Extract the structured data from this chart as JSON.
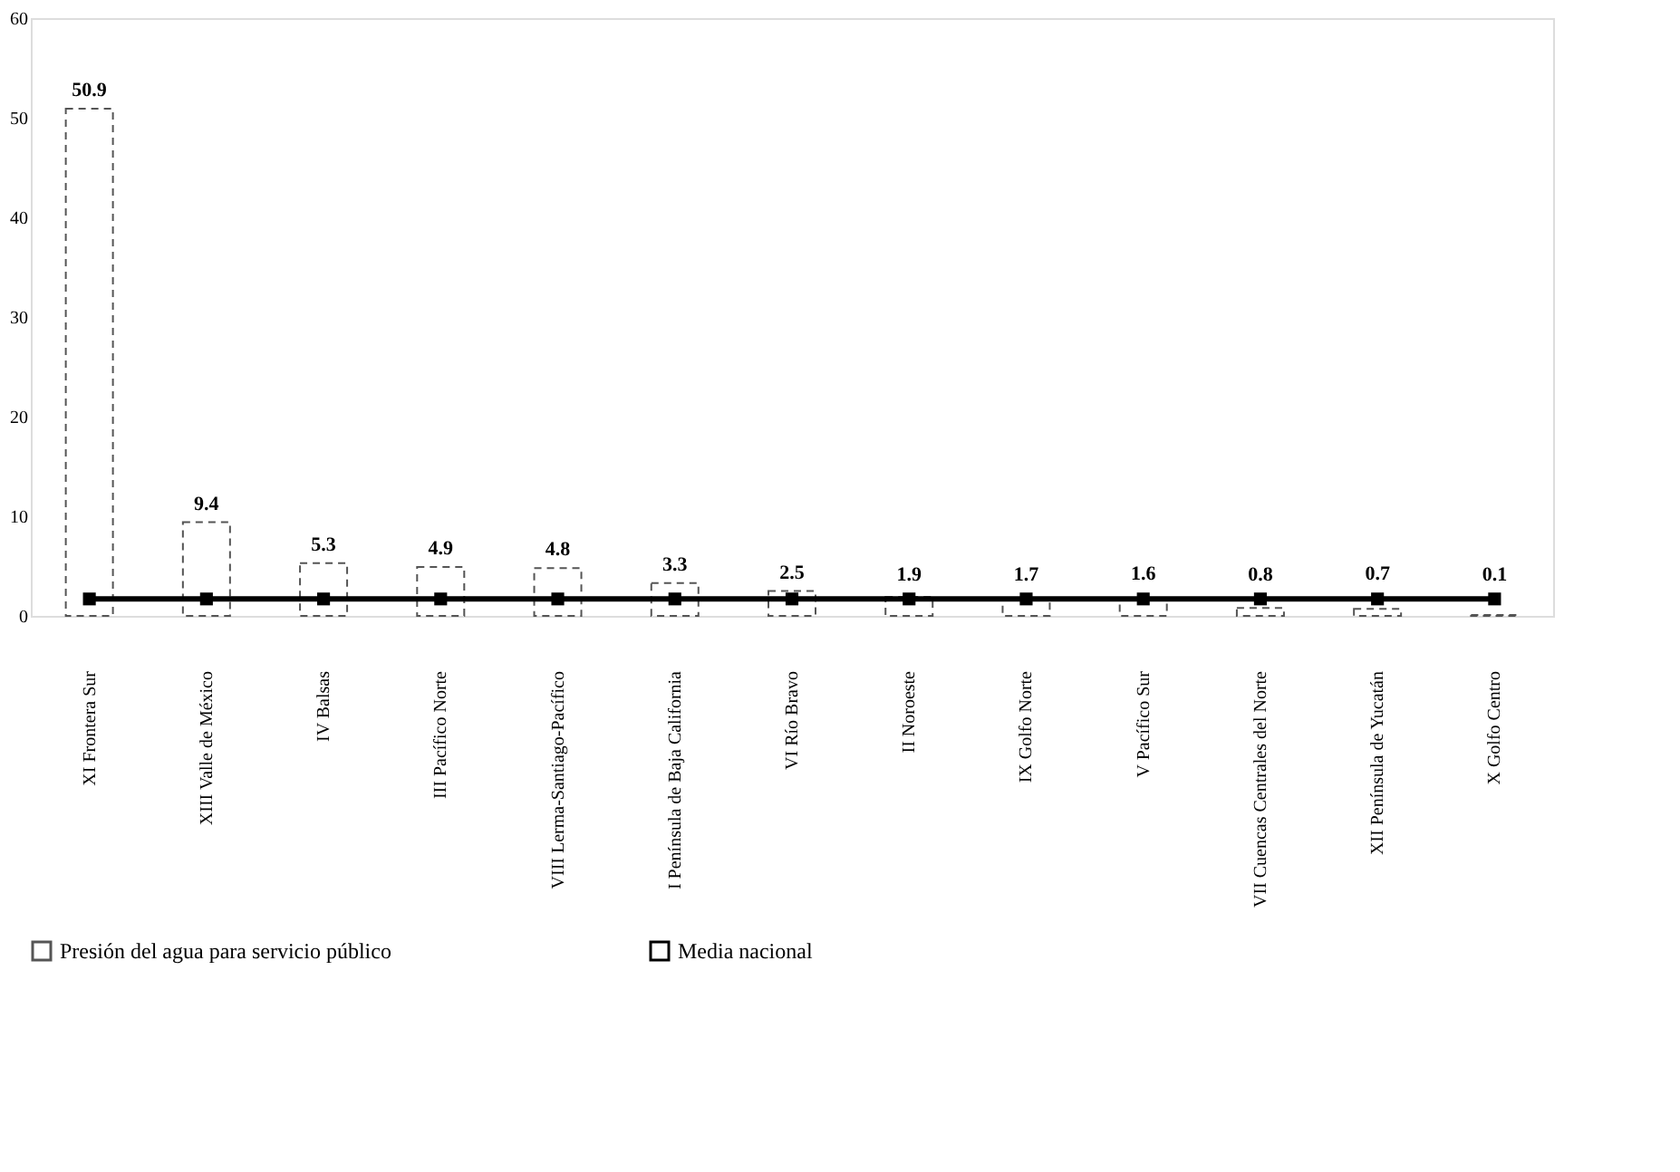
{
  "chart_data": {
    "type": "bar",
    "categories": [
      "XI Frontera Sur",
      "XIII Valle de México",
      "IV Balsas",
      "III Pacífico Norte",
      "VIII Lerma-Santiago-Pacífico",
      "I Península de Baja California",
      "VI Río Bravo",
      "II Noroeste",
      "IX Golfo Norte",
      "V Pacífico Sur",
      "VII Cuencas Centrales del Norte",
      "XII Península de Yucatán",
      "X Golfo Centro"
    ],
    "series": [
      {
        "name": "Presión del agua para servicio público",
        "color": "#555555",
        "line_style": "dashed",
        "values": [
          50.9,
          9.4,
          5.3,
          4.9,
          4.8,
          3.3,
          2.5,
          1.9,
          1.7,
          1.6,
          0.8,
          0.7,
          0.1
        ],
        "value_labels": [
          "50.9",
          "9.4",
          "5.3",
          "4.9",
          "4.8",
          "3.3",
          "2.5",
          "1.9",
          "1.7",
          "1.6",
          "0.8",
          "0.7",
          "0.1"
        ]
      },
      {
        "name": "Media nacional",
        "type": "line",
        "color": "#000000",
        "marker": "square",
        "values": [
          1.7,
          1.7,
          1.7,
          1.7,
          1.7,
          1.7,
          1.7,
          1.7,
          1.7,
          1.7,
          1.7,
          1.7,
          1.7
        ]
      }
    ],
    "ylim": [
      0,
      60
    ],
    "yticks": [
      0,
      10,
      20,
      30,
      40,
      50,
      60
    ],
    "grid": false,
    "legend": "bottom"
  }
}
